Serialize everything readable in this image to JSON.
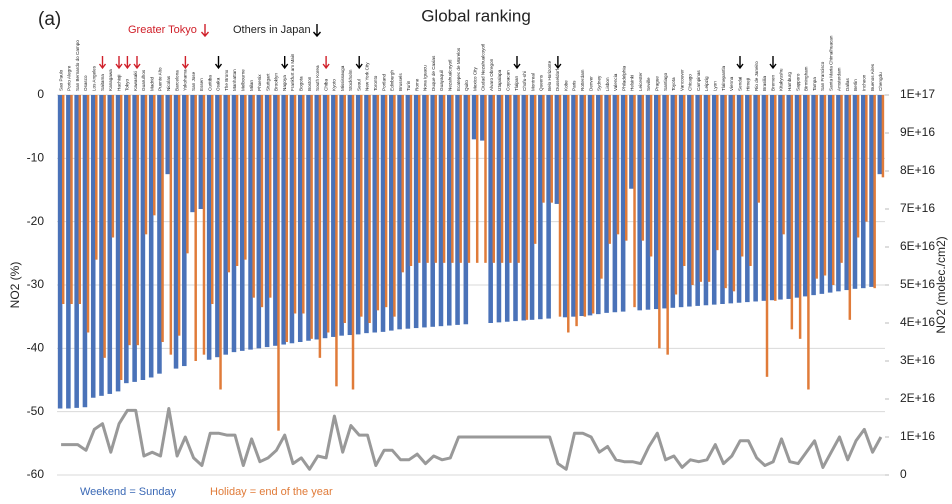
{
  "chart_data": {
    "type": "bar",
    "panel_label": "(a)",
    "title": "Global ranking",
    "annotations": [
      "Greater Tokyo",
      "Others in Japan"
    ],
    "y_label": "NO2 (%)",
    "y2_label": "NO2 (molec./cm2)",
    "categories": [
      "Sao Paulo",
      "Porto Alegre",
      "San Bernardo do Campo",
      "Osasco",
      "Los Angeles",
      "Saitama",
      "Kanagawa",
      "Hachioji",
      "Tokyo",
      "Kawasaki",
      "Guarulhos",
      "Madrid",
      "Puente Alto",
      "Nicolas",
      "Barcelona",
      "Yokohama",
      "San Jose",
      "Essen",
      "Curitiba",
      "Osaka",
      "The Bronx",
      "Manhattan",
      "Melbourne",
      "Milan",
      "Phoenix",
      "Stuttgart",
      "Brooklyn",
      "Nagoya",
      "Frankfurt am Main",
      "Bogota",
      "Boston",
      "South Korea",
      "Chiba",
      "Kyoto",
      "Mississauga",
      "Stockholm",
      "Seoul",
      "New York City",
      "Toronto",
      "Portland",
      "Edinburgh",
      "Brussels",
      "Turin",
      "Rome",
      "Nova Iguacu",
      "Duque de Caxias",
      "Guayaquil",
      "Nezahualcoyotl",
      "Ecatepec de Morelos",
      "Quito",
      "Mexico City",
      "Ciudad Nezahualcoyotl",
      "Alvaro Obregon",
      "Iztapalapa",
      "Coyoacan",
      "Tlalpan",
      "Chofu-shi",
      "Montreal",
      "Queens",
      "Belo Horizonte",
      "Dusseldorf",
      "Kobe",
      "Paris",
      "Rotterdam",
      "Denver",
      "Sydney",
      "Lisbon",
      "Valencia",
      "Philadelphia",
      "Helsinki",
      "Leicester",
      "Seville",
      "Prague",
      "Santiago",
      "Toyota",
      "Vancouver",
      "Chicago",
      "Campinas",
      "Leipzig",
      "Lyon",
      "Tlalnepantla",
      "Vienna",
      "Sendai",
      "Himeji",
      "Rio de Janeiro",
      "Brasilia",
      "Bremen",
      "Kitakyushu",
      "Hamburg",
      "Sapporo",
      "Birmingham",
      "Tampa",
      "San Francisco",
      "Santa Maria Chimalhuacan",
      "Amsterdam",
      "Dallas",
      "Berlin",
      "Incheon",
      "Buenos Aires",
      "Chengdu"
    ],
    "series": [
      {
        "name": "Weekend = Sunday",
        "color": "#4a72b8",
        "values": [
          -49.5,
          -49.5,
          -49.4,
          -49.3,
          -47.8,
          -47.5,
          -47.2,
          -46.8,
          -45.5,
          -45.3,
          -45.0,
          -44.6,
          -44.0,
          -12.5,
          -43.2,
          -42.8,
          -18.5,
          -18.0,
          -41.8,
          -41.4,
          -41.0,
          -40.6,
          -40.4,
          -40.2,
          -40.0,
          -39.8,
          -39.6,
          -39.4,
          -39.2,
          -39.0,
          -38.8,
          -38.6,
          -38.4,
          -38.2,
          -38.0,
          -37.9,
          -37.8,
          -37.6,
          -37.5,
          -37.4,
          -37.2,
          -37.0,
          -36.9,
          -36.8,
          -36.7,
          -36.6,
          -36.5,
          -36.4,
          -36.3,
          -36.2,
          -7.0,
          -7.2,
          -36.0,
          -35.9,
          -35.8,
          -35.7,
          -35.6,
          -35.5,
          -35.4,
          -35.3,
          -17.2,
          -35.1,
          -35.0,
          -34.9,
          -34.8,
          -34.6,
          -34.4,
          -34.3,
          -34.2,
          -14.8,
          -34.0,
          -33.9,
          -33.8,
          -33.7,
          -33.6,
          -33.5,
          -33.4,
          -33.3,
          -33.2,
          -33.1,
          -33.0,
          -32.9,
          -32.8,
          -32.7,
          -32.6,
          -32.5,
          -32.4,
          -32.3,
          -32.2,
          -32.0,
          -31.8,
          -31.6,
          -31.4,
          -31.2,
          -31.0,
          -30.8,
          -30.6,
          -30.5,
          -30.3,
          -12.5
        ]
      },
      {
        "name": "Holiday = end of the year",
        "color": "#e07b39",
        "values": [
          -33,
          -33,
          -33,
          -37.5,
          -26,
          -41.5,
          -22.5,
          -45,
          -39.5,
          -39.5,
          -22,
          -19,
          -39,
          -41,
          -38,
          -25,
          -42,
          -41,
          -33,
          -46.5,
          -28,
          -27,
          -26,
          -32,
          -33.5,
          -32,
          -53,
          -39,
          -34.5,
          -34.5,
          -38.5,
          -41.5,
          -37.5,
          -46,
          -36,
          -46.5,
          -35,
          -36,
          -34,
          -33.5,
          -35,
          -28,
          -27,
          -26.5,
          -26.5,
          -26.5,
          -26.5,
          -26.5,
          -26.5,
          -26.5,
          -26.5,
          -26.5,
          -26.5,
          -26.5,
          -26.5,
          -26.5,
          -35.5,
          -23.5,
          -17,
          -17,
          -35,
          -37.5,
          -36.5,
          -35,
          -34.5,
          -29,
          -23.5,
          -22,
          -23,
          -33.5,
          -23,
          -25.5,
          -40,
          -41,
          -31.5,
          -27,
          -30,
          -29.5,
          -29.5,
          -24.5,
          -30.5,
          -31,
          -25.5,
          -27,
          -17,
          -44.5,
          -32.5,
          -22,
          -37,
          -38.5,
          -46.5,
          -29,
          -28.5,
          -30,
          -26.5,
          -35.5,
          -22.5,
          -20,
          -30.5,
          -13
        ]
      },
      {
        "type": "line",
        "axis": "y2",
        "color": "#999999",
        "values": [
          8000000000000000.0,
          8000000000000000.0,
          8000000000000000.0,
          6500000000000000.0,
          1.2e+16,
          1.35e+16,
          6000000000000000.0,
          1.35e+16,
          1.7e+16,
          1.7e+16,
          5000000000000000.0,
          6000000000000000.0,
          5000000000000000.0,
          1.75e+16,
          5000000000000000.0,
          1e+16,
          4500000000000000.0,
          2500000000000000.0,
          1.1e+16,
          1.1e+16,
          1.05e+16,
          1.05e+16,
          2500000000000000.0,
          9500000000000000.0,
          3500000000000000.0,
          4500000000000000.0,
          6500000000000000.0,
          1.05e+16,
          3000000000000000.0,
          4500000000000000.0,
          1500000000000000.0,
          5000000000000000.0,
          4500000000000000.0,
          1.55e+16,
          6000000000000000.0,
          1.3e+16,
          1.05e+16,
          1.05e+16,
          2500000000000000.0,
          6500000000000000.0,
          6500000000000000.0,
          4000000000000000.0,
          4000000000000000.0,
          5500000000000000.0,
          3000000000000000.0,
          5000000000000000.0,
          4000000000000000.0,
          4500000000000000.0,
          1e+16,
          1e+16,
          1e+16,
          1e+16,
          1e+16,
          1e+16,
          1e+16,
          1e+16,
          1e+16,
          1e+16,
          1e+16,
          1e+16,
          3000000000000000.0,
          1500000000000000.0,
          1.1e+16,
          1.1e+16,
          1e+16,
          6000000000000000.0,
          7500000000000000.0,
          4000000000000000.0,
          3500000000000000.0,
          3500000000000000.0,
          3000000000000000.0,
          7500000000000000.0,
          1.1e+16,
          4000000000000000.0,
          5000000000000000.0,
          2000000000000000.0,
          4000000000000000.0,
          3500000000000000.0,
          4000000000000000.0,
          8000000000000000.0,
          3000000000000000.0,
          5000000000000000.0,
          9000000000000000.0,
          9000000000000000.0,
          4500000000000000.0,
          2500000000000000.0,
          3500000000000000.0,
          9500000000000000.0,
          3500000000000000.0,
          3000000000000000.0,
          6000000000000000.0,
          9000000000000000.0,
          2000000000000000.0,
          6000000000000000.0,
          1e+16,
          4000000000000000.0,
          9000000000000000.0,
          1.2e+16,
          6000000000000000.0,
          1e+16
        ]
      }
    ],
    "ylim": [
      -60,
      0
    ],
    "yticks": [
      0,
      -10,
      -20,
      -30,
      -40,
      -50,
      -60
    ],
    "y2lim": [
      0,
      1e+17
    ],
    "y2ticks": [
      0,
      {
        "value": 1e+16,
        "label": "1E+16"
      },
      {
        "value": 2e+16,
        "label": "2E+16"
      },
      {
        "value": 3e+16,
        "label": "3E+16"
      },
      {
        "value": 4e+16,
        "label": "4E+16"
      },
      {
        "value": 5e+16,
        "label": "5E+16"
      },
      {
        "value": 6e+16,
        "label": "6E+16"
      },
      {
        "value": 7e+16,
        "label": "7E+16"
      },
      {
        "value": 8e+16,
        "label": "8E+16"
      },
      {
        "value": 9e+16,
        "label": "9E+16"
      },
      {
        "value": 1e+17,
        "label": "1E+17"
      }
    ],
    "grid": true
  }
}
